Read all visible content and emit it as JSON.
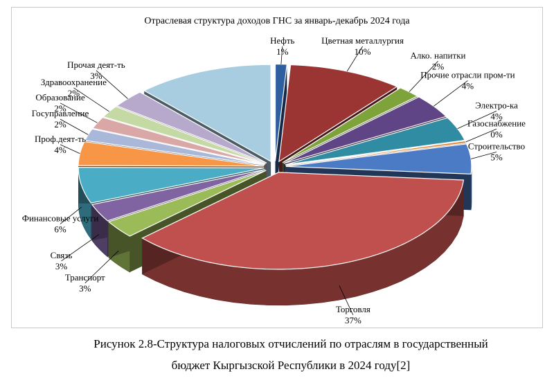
{
  "chart_data": {
    "type": "pie",
    "title": "Отраслевая структура доходов ГНС за январь-декабрь 2024 года",
    "slices": [
      {
        "label": "Нефть",
        "value": 1,
        "value_label": "1%",
        "color": "#2e5f9e"
      },
      {
        "label": "Цветная металлургия",
        "value": 10,
        "value_label": "10%",
        "color": "#9b3534"
      },
      {
        "label": "Алко. напитки",
        "value": 2,
        "value_label": "2%",
        "color": "#7ea33b"
      },
      {
        "label": "Прочие отрасли пром-ти",
        "value": 4,
        "value_label": "4%",
        "color": "#5f4585"
      },
      {
        "label": "Электро-ка",
        "value": 4,
        "value_label": "4%",
        "color": "#2f8ca3"
      },
      {
        "label": "Газоснабжение",
        "value": 0,
        "value_label": "0%",
        "color": "#e07a2a"
      },
      {
        "label": "Строительство",
        "value": 5,
        "value_label": "5%",
        "color": "#4b7bc4"
      },
      {
        "label": "Торговля",
        "value": 37,
        "value_label": "37%",
        "color": "#c0504d"
      },
      {
        "label": "Транспорт",
        "value": 3,
        "value_label": "3%",
        "color": "#9bbb59"
      },
      {
        "label": "Связь",
        "value": 3,
        "value_label": "3%",
        "color": "#8064a2"
      },
      {
        "label": "Финансовые услуги",
        "value": 6,
        "value_label": "6%",
        "color": "#4bacc6"
      },
      {
        "label": "Проф.деят-ть",
        "value": 4,
        "value_label": "4%",
        "color": "#f79646"
      },
      {
        "label": "Госуправление",
        "value": 2,
        "value_label": "2%",
        "color": "#a9b8d8"
      },
      {
        "label": "Образование",
        "value": 2,
        "value_label": "2%",
        "color": "#d9a8a6"
      },
      {
        "label": "Здравоохранение",
        "value": 2,
        "value_label": "2%",
        "color": "#c5d9a4"
      },
      {
        "label": "Прочая деят-ть",
        "value": 3,
        "value_label": "3%",
        "color": "#b7a9cc"
      },
      {
        "label": "",
        "value": 12,
        "value_label": "",
        "color": "#a8cde0"
      }
    ],
    "legend": "none",
    "data_labels": "outside"
  },
  "caption": {
    "line1": "Рисунок 2.8-Структура налоговых отчислений  по отраслям в государственный",
    "line2": "бюджет Кыргызской Республики в 2024 году[2]"
  }
}
